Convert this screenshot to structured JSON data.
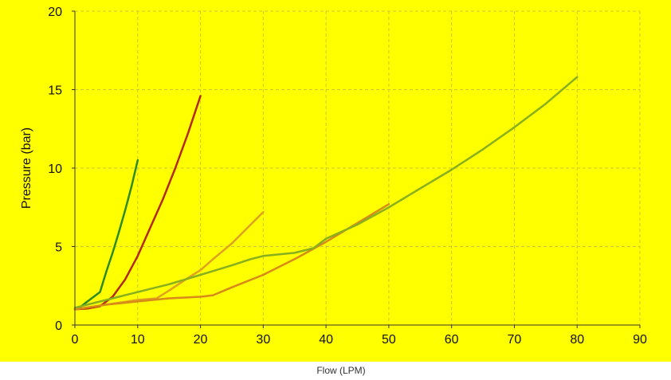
{
  "chart_data": {
    "type": "line",
    "title": "",
    "xlabel": "Flow (LPM)",
    "ylabel": "Pressure (bar)",
    "xlim": [
      0,
      90
    ],
    "ylim": [
      0,
      20
    ],
    "xticks": [
      "0",
      "10",
      "20",
      "30",
      "40",
      "50",
      "60",
      "70",
      "80",
      "90"
    ],
    "yticks": [
      "0",
      "5",
      "10",
      "15",
      "20"
    ],
    "grid": true,
    "legend": "none",
    "colors": {
      "background": "#ffff00",
      "grid": "#c8c832",
      "axis": "#333333"
    },
    "series": [
      {
        "color": "#2e8b22",
        "x": [
          0,
          1,
          2,
          3,
          4,
          5,
          6,
          7,
          8,
          9,
          10
        ],
        "y": [
          1.0,
          1.2,
          1.5,
          1.8,
          2.1,
          3.4,
          4.6,
          5.9,
          7.3,
          8.8,
          10.5
        ]
      },
      {
        "color": "#b22a10",
        "x": [
          0,
          2,
          4,
          6,
          8,
          10,
          12,
          14,
          16,
          18,
          20
        ],
        "y": [
          1.0,
          1.05,
          1.2,
          1.8,
          2.9,
          4.4,
          6.2,
          8.0,
          10.0,
          12.2,
          14.6
        ]
      },
      {
        "color": "#e0a020",
        "x": [
          0,
          5,
          10,
          13,
          15,
          18,
          20,
          22,
          25,
          28,
          30
        ],
        "y": [
          1.0,
          1.3,
          1.6,
          1.7,
          2.2,
          3.0,
          3.5,
          4.2,
          5.2,
          6.4,
          7.2
        ]
      },
      {
        "color": "#d88a18",
        "x": [
          0,
          5,
          10,
          15,
          20,
          22,
          25,
          30,
          35,
          40,
          45,
          50
        ],
        "y": [
          1.0,
          1.3,
          1.5,
          1.7,
          1.8,
          1.9,
          2.4,
          3.2,
          4.2,
          5.3,
          6.5,
          7.7
        ]
      },
      {
        "color": "#88b01e",
        "x": [
          0,
          5,
          10,
          15,
          20,
          25,
          28,
          30,
          35,
          38,
          40,
          45,
          50,
          55,
          60,
          65,
          70,
          75,
          80
        ],
        "y": [
          1.1,
          1.6,
          2.1,
          2.6,
          3.2,
          3.8,
          4.2,
          4.4,
          4.6,
          4.9,
          5.5,
          6.4,
          7.5,
          8.7,
          9.9,
          11.2,
          12.6,
          14.1,
          15.8
        ]
      }
    ]
  }
}
